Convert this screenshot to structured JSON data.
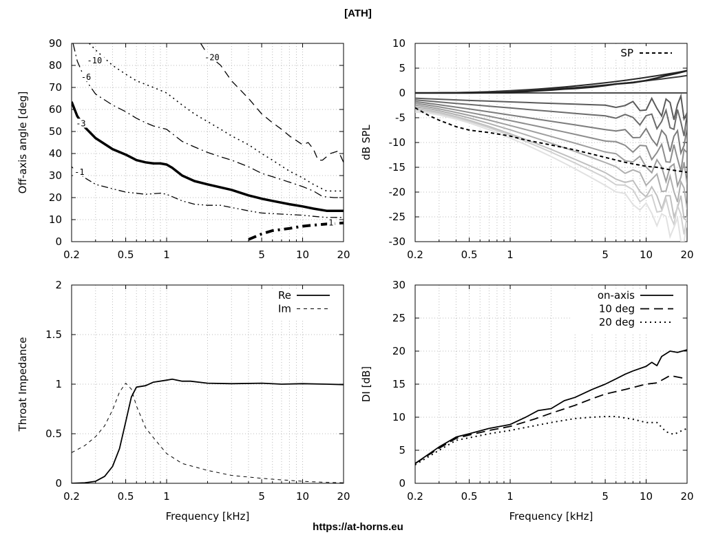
{
  "page": {
    "title": "[ATH]",
    "footer": "https://at-horns.eu"
  },
  "chart_data": [
    {
      "id": "polar",
      "type": "line",
      "ylabel": "Off-axis angle [deg]",
      "xlabel": "",
      "xscale": "log",
      "xlim": [
        0.2,
        20
      ],
      "ylim": [
        0,
        90
      ],
      "x_ticks": [
        0.2,
        0.5,
        1,
        5,
        10,
        20
      ],
      "y_ticks": [
        0,
        10,
        20,
        30,
        40,
        50,
        60,
        70,
        80,
        90
      ],
      "series": [
        {
          "name": "-1",
          "label_at": [
            0.21,
            31
          ],
          "style": "dashdotdot",
          "width": 1.3,
          "points": [
            [
              0.2,
              34
            ],
            [
              0.25,
              29
            ],
            [
              0.3,
              26
            ],
            [
              0.4,
              24
            ],
            [
              0.5,
              22.5
            ],
            [
              0.7,
              21.5
            ],
            [
              0.9,
              22
            ],
            [
              1,
              21.5
            ],
            [
              1.3,
              18.5
            ],
            [
              1.6,
              17
            ],
            [
              2,
              16.5
            ],
            [
              2.5,
              16.5
            ],
            [
              3,
              15.5
            ],
            [
              4,
              14
            ],
            [
              5,
              13
            ],
            [
              7,
              12.5
            ],
            [
              10,
              12
            ],
            [
              12,
              11.5
            ],
            [
              15,
              11
            ],
            [
              20,
              11
            ]
          ]
        },
        {
          "name": "1",
          "label_at": [
            15.5,
            8
          ],
          "style": "dashdot-thick",
          "width": 4,
          "points": [
            [
              4,
              1
            ],
            [
              5,
              3.5
            ],
            [
              6,
              5
            ],
            [
              8,
              6
            ],
            [
              10,
              7
            ],
            [
              12,
              7.5
            ],
            [
              15,
              8
            ],
            [
              20,
              8.5
            ]
          ]
        },
        {
          "name": "-3",
          "label_at": [
            0.215,
            53
          ],
          "style": "solid",
          "width": 3.5,
          "points": [
            [
              0.2,
              63.5
            ],
            [
              0.22,
              57
            ],
            [
              0.25,
              52
            ],
            [
              0.3,
              47
            ],
            [
              0.4,
              42
            ],
            [
              0.5,
              39.5
            ],
            [
              0.6,
              37
            ],
            [
              0.7,
              36
            ],
            [
              0.8,
              35.5
            ],
            [
              0.9,
              35.5
            ],
            [
              1,
              35
            ],
            [
              1.1,
              33.5
            ],
            [
              1.3,
              30
            ],
            [
              1.6,
              27.5
            ],
            [
              2,
              26
            ],
            [
              3,
              23.5
            ],
            [
              4,
              21
            ],
            [
              5,
              19.5
            ],
            [
              6,
              18.5
            ],
            [
              8,
              17
            ],
            [
              10,
              16
            ],
            [
              12,
              15
            ],
            [
              15,
              14
            ],
            [
              20,
              14
            ]
          ]
        },
        {
          "name": "-6",
          "label_at": [
            0.235,
            74
          ],
          "style": "dashdot",
          "width": 1.3,
          "points": [
            [
              0.205,
              90
            ],
            [
              0.22,
              82
            ],
            [
              0.25,
              74
            ],
            [
              0.3,
              67
            ],
            [
              0.4,
              62
            ],
            [
              0.5,
              59
            ],
            [
              0.6,
              56
            ],
            [
              0.7,
              54
            ],
            [
              0.8,
              52.5
            ],
            [
              1,
              51
            ],
            [
              1.3,
              45.5
            ],
            [
              1.6,
              43
            ],
            [
              2,
              40.5
            ],
            [
              2.5,
              38.5
            ],
            [
              3,
              37
            ],
            [
              4,
              34
            ],
            [
              5,
              31
            ],
            [
              6,
              29.5
            ],
            [
              8,
              27
            ],
            [
              10,
              25
            ],
            [
              12,
              23
            ],
            [
              14,
              20.5
            ],
            [
              17,
              20
            ],
            [
              20,
              20
            ]
          ]
        },
        {
          "name": "-10",
          "label_at": [
            0.26,
            81.5
          ],
          "style": "dotted",
          "width": 1.6,
          "points": [
            [
              0.27,
              90
            ],
            [
              0.3,
              87
            ],
            [
              0.4,
              80
            ],
            [
              0.5,
              76
            ],
            [
              0.6,
              73
            ],
            [
              0.8,
              70
            ],
            [
              1,
              67.5
            ],
            [
              1.3,
              62
            ],
            [
              1.6,
              58
            ],
            [
              2,
              54.5
            ],
            [
              2.5,
              51
            ],
            [
              3,
              48
            ],
            [
              4,
              44
            ],
            [
              5,
              40
            ],
            [
              6,
              37
            ],
            [
              8,
              32
            ],
            [
              10,
              29
            ],
            [
              12,
              26
            ],
            [
              15,
              23
            ],
            [
              20,
              23
            ]
          ]
        },
        {
          "name": "-20",
          "label_at": [
            1.9,
            83
          ],
          "style": "dashed",
          "width": 1.3,
          "points": [
            [
              1.78,
              90
            ],
            [
              2,
              85
            ],
            [
              2.5,
              80
            ],
            [
              3,
              73
            ],
            [
              4,
              65
            ],
            [
              5,
              58
            ],
            [
              6,
              54
            ],
            [
              7,
              51
            ],
            [
              8,
              48
            ],
            [
              10,
              44
            ],
            [
              11,
              45
            ],
            [
              12,
              42
            ],
            [
              13,
              37
            ],
            [
              14,
              37
            ],
            [
              16,
              40
            ],
            [
              18,
              41
            ],
            [
              19,
              39
            ],
            [
              20,
              36
            ]
          ]
        }
      ]
    },
    {
      "id": "spl",
      "type": "line",
      "ylabel": "dB SPL",
      "xlabel": "",
      "xscale": "log",
      "xlim": [
        0.2,
        20
      ],
      "ylim": [
        -30,
        10
      ],
      "x_ticks": [
        0.2,
        0.5,
        1,
        5,
        10,
        20
      ],
      "y_ticks": [
        -30,
        -25,
        -20,
        -15,
        -10,
        -5,
        0,
        5,
        10
      ],
      "legend": {
        "position": "top-right",
        "entries": [
          "SP"
        ]
      },
      "sp_curve": [
        [
          0.2,
          -3
        ],
        [
          0.25,
          -4.5
        ],
        [
          0.3,
          -5.5
        ],
        [
          0.4,
          -6.8
        ],
        [
          0.5,
          -7.5
        ],
        [
          0.7,
          -8
        ],
        [
          1,
          -8.7
        ],
        [
          1.3,
          -9.5
        ],
        [
          2,
          -10.5
        ],
        [
          3,
          -11.5
        ],
        [
          5,
          -13
        ],
        [
          7,
          -14
        ],
        [
          10,
          -14.8
        ],
        [
          12,
          -15
        ],
        [
          15,
          -15.5
        ],
        [
          20,
          -16
        ]
      ],
      "onaxis_curve": [
        [
          0.2,
          0
        ],
        [
          0.5,
          0
        ],
        [
          1,
          0.1
        ],
        [
          1.5,
          0.4
        ],
        [
          2,
          0.6
        ],
        [
          2.5,
          0.8
        ],
        [
          3,
          0.9
        ],
        [
          4,
          1.2
        ],
        [
          5,
          1.5
        ],
        [
          6,
          1.8
        ],
        [
          8,
          2.1
        ],
        [
          10,
          2.5
        ],
        [
          12,
          3
        ],
        [
          14,
          3.5
        ],
        [
          17,
          4
        ],
        [
          20,
          4.5
        ]
      ],
      "family_high_freq_final": [
        4.5,
        3.5,
        0,
        -3,
        -6,
        -10,
        -13.5,
        -17,
        -20.5,
        -24,
        -26,
        -29
      ]
    },
    {
      "id": "impedance",
      "type": "line",
      "ylabel": "Throat Impedance",
      "xlabel": "Frequency [kHz]",
      "xscale": "log",
      "xlim": [
        0.2,
        20
      ],
      "ylim": [
        0,
        2
      ],
      "x_ticks": [
        0.2,
        0.5,
        1,
        5,
        10,
        20
      ],
      "y_ticks": [
        0,
        0.5,
        1,
        1.5,
        2
      ],
      "legend": {
        "position": "top-right"
      },
      "series": [
        {
          "name": "Re",
          "style": "solid",
          "points": [
            [
              0.2,
              0
            ],
            [
              0.25,
              0.005
            ],
            [
              0.3,
              0.02
            ],
            [
              0.35,
              0.07
            ],
            [
              0.4,
              0.17
            ],
            [
              0.45,
              0.35
            ],
            [
              0.5,
              0.62
            ],
            [
              0.55,
              0.87
            ],
            [
              0.6,
              0.97
            ],
            [
              0.7,
              0.985
            ],
            [
              0.8,
              1.02
            ],
            [
              1,
              1.04
            ],
            [
              1.1,
              1.05
            ],
            [
              1.3,
              1.03
            ],
            [
              1.5,
              1.03
            ],
            [
              2,
              1.01
            ],
            [
              3,
              1.005
            ],
            [
              5,
              1.01
            ],
            [
              7,
              1.0
            ],
            [
              10,
              1.005
            ],
            [
              15,
              1.0
            ],
            [
              20,
              0.995
            ]
          ]
        },
        {
          "name": "Im",
          "style": "dashed",
          "points": [
            [
              0.2,
              0.31
            ],
            [
              0.25,
              0.38
            ],
            [
              0.3,
              0.47
            ],
            [
              0.35,
              0.58
            ],
            [
              0.4,
              0.74
            ],
            [
              0.45,
              0.92
            ],
            [
              0.5,
              1.01
            ],
            [
              0.55,
              0.95
            ],
            [
              0.6,
              0.78
            ],
            [
              0.7,
              0.56
            ],
            [
              0.8,
              0.46
            ],
            [
              1,
              0.3
            ],
            [
              1.3,
              0.2
            ],
            [
              2,
              0.13
            ],
            [
              3,
              0.08
            ],
            [
              5,
              0.05
            ],
            [
              7,
              0.035
            ],
            [
              10,
              0.02
            ],
            [
              15,
              0.01
            ],
            [
              20,
              0.005
            ]
          ]
        }
      ]
    },
    {
      "id": "di",
      "type": "line",
      "ylabel": "DI [dB]",
      "xlabel": "Frequency [kHz]",
      "xscale": "log",
      "xlim": [
        0.2,
        20
      ],
      "ylim": [
        0,
        30
      ],
      "x_ticks": [
        0.2,
        0.5,
        1,
        5,
        10,
        20
      ],
      "y_ticks": [
        0,
        5,
        10,
        15,
        20,
        25,
        30
      ],
      "legend": {
        "position": "top-right"
      },
      "series": [
        {
          "name": "on-axis",
          "style": "solid",
          "points": [
            [
              0.2,
              3
            ],
            [
              0.3,
              5.5
            ],
            [
              0.4,
              7
            ],
            [
              0.5,
              7.5
            ],
            [
              0.7,
              8.3
            ],
            [
              1,
              8.9
            ],
            [
              1.3,
              10
            ],
            [
              1.6,
              11
            ],
            [
              2,
              11.3
            ],
            [
              2.5,
              12.5
            ],
            [
              3,
              13
            ],
            [
              4,
              14.2
            ],
            [
              5,
              15
            ],
            [
              6,
              15.8
            ],
            [
              7,
              16.5
            ],
            [
              8,
              17
            ],
            [
              10,
              17.7
            ],
            [
              11,
              18.3
            ],
            [
              12,
              17.8
            ],
            [
              13,
              19.2
            ],
            [
              15,
              20
            ],
            [
              17,
              19.8
            ],
            [
              20,
              20.2
            ]
          ]
        },
        {
          "name": "10 deg",
          "style": "dashed",
          "points": [
            [
              0.2,
              3
            ],
            [
              0.3,
              5.3
            ],
            [
              0.4,
              6.8
            ],
            [
              0.5,
              7.3
            ],
            [
              0.7,
              8
            ],
            [
              1,
              8.6
            ],
            [
              1.5,
              9.7
            ],
            [
              2,
              10.6
            ],
            [
              3,
              11.8
            ],
            [
              4,
              12.8
            ],
            [
              5,
              13.5
            ],
            [
              7,
              14.2
            ],
            [
              10,
              15
            ],
            [
              12,
              15.2
            ],
            [
              15,
              16.3
            ],
            [
              20,
              15.8
            ]
          ]
        },
        {
          "name": "20 deg",
          "style": "dotted",
          "points": [
            [
              0.2,
              2.8
            ],
            [
              0.3,
              5
            ],
            [
              0.4,
              6.5
            ],
            [
              0.5,
              6.9
            ],
            [
              0.7,
              7.5
            ],
            [
              1,
              8
            ],
            [
              1.5,
              8.7
            ],
            [
              2,
              9.2
            ],
            [
              3,
              9.8
            ],
            [
              4,
              10
            ],
            [
              5,
              10.1
            ],
            [
              6,
              10.1
            ],
            [
              8,
              9.7
            ],
            [
              10,
              9.2
            ],
            [
              12,
              9.2
            ],
            [
              14,
              7.8
            ],
            [
              16,
              7.4
            ],
            [
              18,
              7.9
            ],
            [
              20,
              8.3
            ]
          ]
        }
      ]
    }
  ]
}
